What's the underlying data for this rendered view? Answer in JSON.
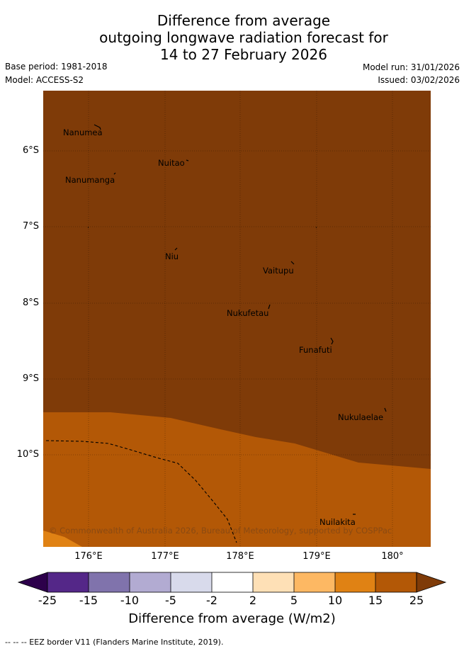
{
  "title": {
    "line1": "Difference from average",
    "line2": "outgoing longwave radiation forecast for",
    "line3": "14 to 27 February 2026"
  },
  "meta": {
    "base_period": "Base period: 1981-2018",
    "model": "Model: ACCESS-S2",
    "model_run": "Model run: 31/01/2026",
    "issued": "Issued: 03/02/2026"
  },
  "map": {
    "lat_labels": [
      "6°S",
      "7°S",
      "8°S",
      "9°S",
      "10°S"
    ],
    "lon_labels": [
      "176°E",
      "177°E",
      "178°E",
      "179°E",
      "180°"
    ],
    "places": [
      {
        "name": "Nanumea"
      },
      {
        "name": "Nuitao"
      },
      {
        "name": "Nanumanga"
      },
      {
        "name": "Niu"
      },
      {
        "name": "Vaitupu"
      },
      {
        "name": "Nukufetau"
      },
      {
        "name": "Funafuti"
      },
      {
        "name": "Nukulaelae"
      },
      {
        "name": "Nuilakita"
      }
    ],
    "copyright": "© Commonwealth of Australia 2026, Bureau of Meteorology, supported by COSPPac",
    "colors": {
      "band_15_25": "#7f3b08",
      "band_10_15": "#b35806",
      "band_5_10": "#e08214"
    }
  },
  "colorbar": {
    "ticks": [
      "-25",
      "-15",
      "-10",
      "-5",
      "-2",
      "2",
      "5",
      "10",
      "15",
      "25"
    ],
    "colors": [
      "#2d004b",
      "#542788",
      "#8073ac",
      "#b2abd2",
      "#d8daeb",
      "#ffffff",
      "#fee0b6",
      "#fdb863",
      "#e08214",
      "#b35806",
      "#7f3b08"
    ],
    "label": "Difference from average (W/m2)"
  },
  "footnote": "--  --  -- EEZ border V11 (Flanders Marine Institute, 2019)."
}
